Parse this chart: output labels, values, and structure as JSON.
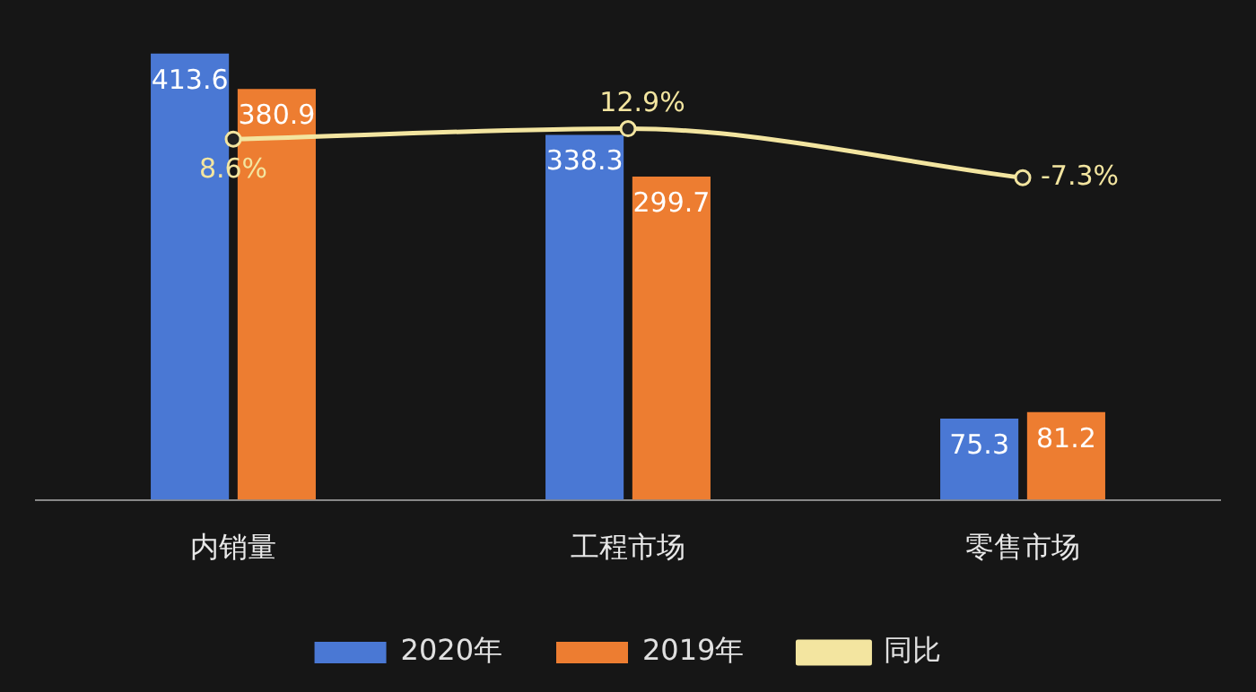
{
  "chart_data": {
    "type": "bar",
    "categories": [
      "内销量",
      "工程市场",
      "零售市场"
    ],
    "series": [
      {
        "name": "2020年",
        "color": "#4a78d4",
        "values": [
          413.6,
          338.3,
          75.3
        ],
        "value_labels": [
          "413.6",
          "338.3",
          "75.3"
        ]
      },
      {
        "name": "2019年",
        "color": "#ed7d31",
        "values": [
          380.9,
          299.7,
          81.2
        ],
        "value_labels": [
          "380.9",
          "299.7",
          "81.2"
        ]
      },
      {
        "name": "同比",
        "type": "line",
        "axis": "y2",
        "color": "#f3e5a0",
        "values": [
          8.6,
          12.9,
          -7.3
        ],
        "value_labels": [
          "8.6%",
          "12.9%",
          "-7.3%"
        ]
      }
    ],
    "tick_labels": "x",
    "grid": false,
    "legend": "bottom",
    "marker": "circle"
  }
}
